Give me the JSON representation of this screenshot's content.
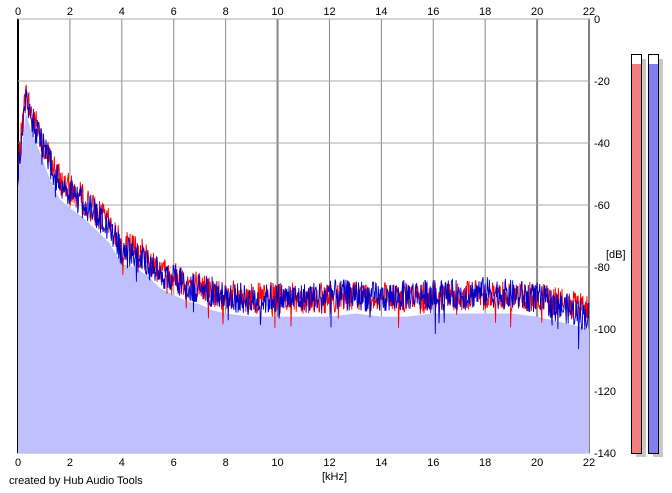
{
  "chart_data": {
    "type": "area",
    "xlabel": "[kHz]",
    "ylabel": "[dB]",
    "xlim": [
      0,
      22
    ],
    "ylim": [
      -140,
      0
    ],
    "x_ticks": [
      "0",
      "2",
      "4",
      "6",
      "8",
      "10",
      "12",
      "14",
      "16",
      "18",
      "20",
      "22"
    ],
    "y_ticks": [
      "0",
      "-20",
      "-40",
      "-60",
      "-80",
      "-100",
      "-120",
      "-140"
    ],
    "grid": true,
    "series": [
      {
        "color": "#ff0000",
        "x": [
          0,
          0.3,
          0.5,
          0.8,
          1.2,
          1.6,
          2,
          2.5,
          3,
          3.5,
          4,
          4.5,
          5,
          5.5,
          6,
          6.5,
          7,
          7.5,
          8,
          9,
          10,
          11,
          12,
          13,
          14,
          15,
          16,
          17,
          18,
          19,
          20,
          21,
          22
        ],
        "values": [
          -48,
          -24,
          -30,
          -36,
          -45,
          -52,
          -55,
          -58,
          -62,
          -66,
          -73,
          -74,
          -77,
          -81,
          -83,
          -85,
          -86,
          -88,
          -89,
          -90,
          -90,
          -90,
          -90,
          -89,
          -90,
          -90,
          -89,
          -89,
          -89,
          -89,
          -90,
          -92,
          -94
        ]
      },
      {
        "color": "#0000cc",
        "x": [
          0,
          0.3,
          0.5,
          0.8,
          1.2,
          1.6,
          2,
          2.5,
          3,
          3.5,
          4,
          4.5,
          5,
          5.5,
          6,
          6.5,
          7,
          7.5,
          8,
          9,
          10,
          11,
          12,
          13,
          14,
          15,
          16,
          17,
          18,
          19,
          20,
          21,
          22
        ],
        "values": [
          -50,
          -27,
          -32,
          -38,
          -46,
          -53,
          -56,
          -59,
          -63,
          -67,
          -75,
          -76,
          -79,
          -82,
          -84,
          -86,
          -87,
          -88,
          -89,
          -91,
          -90,
          -90,
          -89,
          -89,
          -90,
          -89,
          -89,
          -89,
          -88,
          -89,
          -90,
          -93,
          -96
        ]
      }
    ],
    "fill_color": "#c0c0ff",
    "level_meters": [
      {
        "color": "#f08080",
        "level": 0.977
      },
      {
        "color": "#8080f0",
        "level": 0.977
      }
    ]
  },
  "footer": {
    "credit": "created by Hub Audio Tools"
  }
}
